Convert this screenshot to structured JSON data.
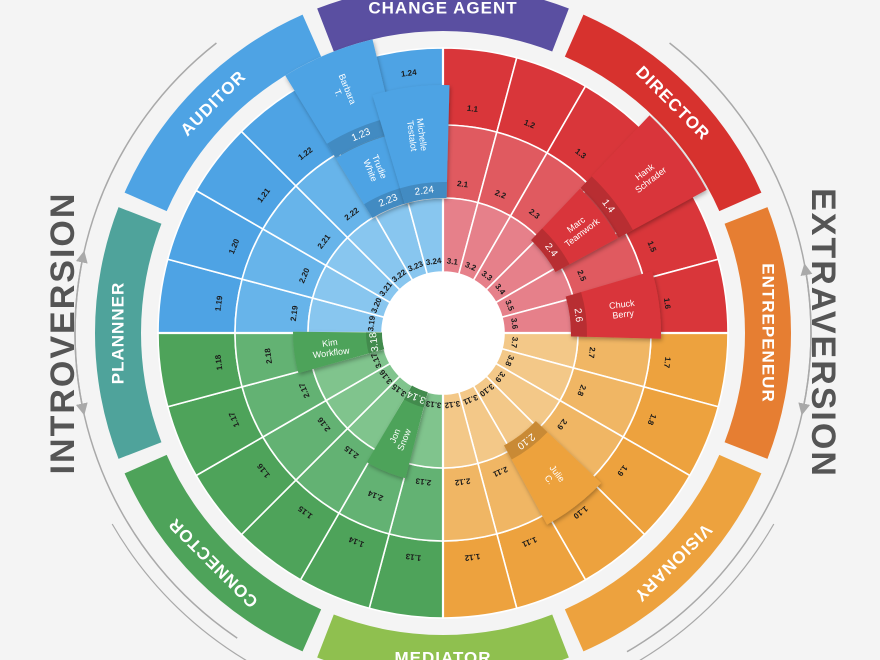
{
  "axes": {
    "left": "INTROVERSION",
    "right": "EXTRAVERSION",
    "arc_color": "#a9a9a9"
  },
  "bands": [
    {
      "label": "CHANGE AGENT",
      "color": "#5a4fa1"
    },
    {
      "label": "DIRECTOR",
      "color": "#d7322e"
    },
    {
      "label": "ENTREPENEUR",
      "color": "#e67e32"
    },
    {
      "label": "VISIONARY",
      "color": "#eda23e"
    },
    {
      "label": "MEDIATOR",
      "color": "#8fc04f"
    },
    {
      "label": "CONNECTOR",
      "color": "#4ea35a"
    },
    {
      "label": "PLANNNER",
      "color": "#4fa39b"
    },
    {
      "label": "AUDITOR",
      "color": "#4ea3e4"
    }
  ],
  "quadrants": [
    {
      "color_outer": "#d9363a",
      "color_middle": "#e05a60",
      "color_inner": "#e6808a"
    },
    {
      "color_outer": "#eda23e",
      "color_middle": "#f0b664",
      "color_inner": "#f3c888"
    },
    {
      "color_outer": "#4ea35a",
      "color_middle": "#63b273",
      "color_inner": "#80c48d"
    },
    {
      "color_outer": "#4ea3e4",
      "color_middle": "#67b4ea",
      "color_inner": "#88c6ef"
    }
  ],
  "rings": {
    "outer": [
      "1.1",
      "1.2",
      "1.3",
      "1.4",
      "1.5",
      "1.6",
      "1.7",
      "1.8",
      "1.9",
      "1.10",
      "1.11",
      "1.12",
      "1.13",
      "1.14",
      "1.15",
      "1.16",
      "1.17",
      "1.18",
      "1.19",
      "1.20",
      "1.21",
      "1.22",
      "1.23",
      "1.24"
    ],
    "middle": [
      "2.1",
      "2.2",
      "2.3",
      "2.4",
      "2.5",
      "2.6",
      "2.7",
      "2.8",
      "2.9",
      "2.10",
      "2.11",
      "2.12",
      "2.13",
      "2.14",
      "2.15",
      "2.16",
      "2.17",
      "2.18",
      "2.19",
      "2.20",
      "2.21",
      "2.22",
      "2.23",
      "2.24"
    ],
    "inner": [
      "3.1",
      "3.2",
      "3.3",
      "3.4",
      "3.5",
      "3.6",
      "3.7",
      "3.8",
      "3.9",
      "3.10",
      "3.11",
      "3.12",
      "3.13",
      "3.14",
      "3.15",
      "3.16",
      "3.17",
      "3.18",
      "3.19",
      "3.20",
      "3.21",
      "3.22",
      "3.23",
      "3.24"
    ]
  },
  "highlights": [
    {
      "name": "Barbara T.",
      "cell": "1.23"
    },
    {
      "name": "Trudie White",
      "cell": "2.23"
    },
    {
      "name": "Michelle Testalot",
      "cell": "2.24"
    },
    {
      "name": "Hank Schrader",
      "cell": "1.4"
    },
    {
      "name": "Marc Teamwork",
      "cell": "2.4"
    },
    {
      "name": "Chuck Berry",
      "cell": "2.6"
    },
    {
      "name": "Julie C.",
      "cell": "2.10"
    },
    {
      "name": "Jon Snow",
      "cell": "3.14"
    },
    {
      "name": "Kim Workflow",
      "cell": "3.18"
    }
  ]
}
